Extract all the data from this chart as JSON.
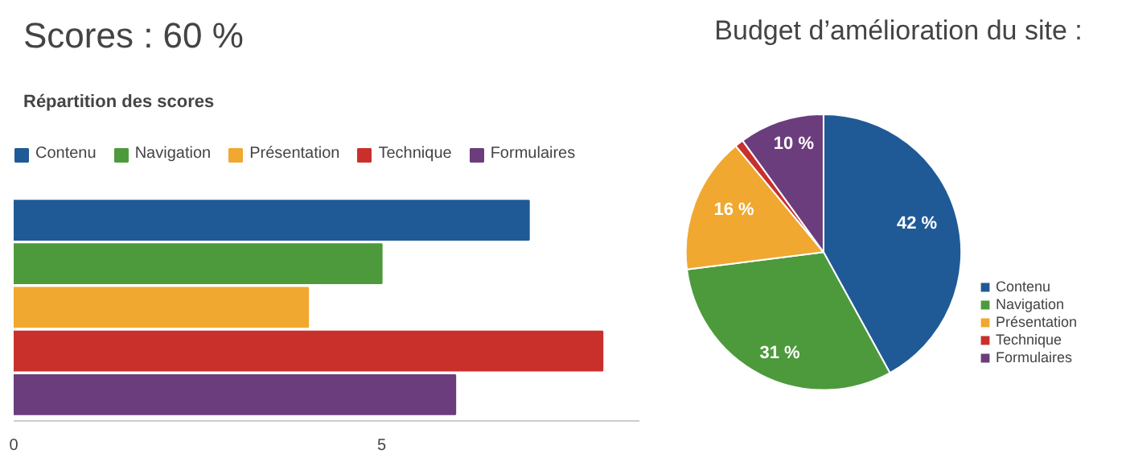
{
  "chart_data": [
    {
      "type": "bar",
      "orientation": "horizontal",
      "title": "Scores :   60 %",
      "subtitle": "Répartition des scores",
      "categories": [
        null
      ],
      "series": [
        {
          "name": "Contenu",
          "color": "#1f5a96",
          "values": [
            7
          ]
        },
        {
          "name": "Navigation",
          "color": "#4d9a3c",
          "values": [
            5
          ]
        },
        {
          "name": "Présentation",
          "color": "#f0a830",
          "values": [
            4
          ]
        },
        {
          "name": "Technique",
          "color": "#c9302c",
          "values": [
            8
          ]
        },
        {
          "name": "Formulaires",
          "color": "#6b3d7d",
          "values": [
            6
          ]
        }
      ],
      "xlim": [
        0,
        8.5
      ],
      "xticks": [
        0,
        5
      ],
      "tick_labels": "x",
      "legend": "top",
      "grid": false
    },
    {
      "type": "pie",
      "title": "Budget d’amélioration du site :",
      "categories": [
        "Contenu",
        "Navigation",
        "Présentation",
        "Technique",
        "Formulaires"
      ],
      "values": [
        42,
        31,
        16,
        1,
        10
      ],
      "colors": [
        "#1f5a96",
        "#4d9a3c",
        "#f0a830",
        "#c9302c",
        "#6b3d7d"
      ],
      "value_labels": [
        "42 %",
        "31 %",
        "16 %",
        null,
        "10 %"
      ],
      "legend": "right"
    }
  ]
}
